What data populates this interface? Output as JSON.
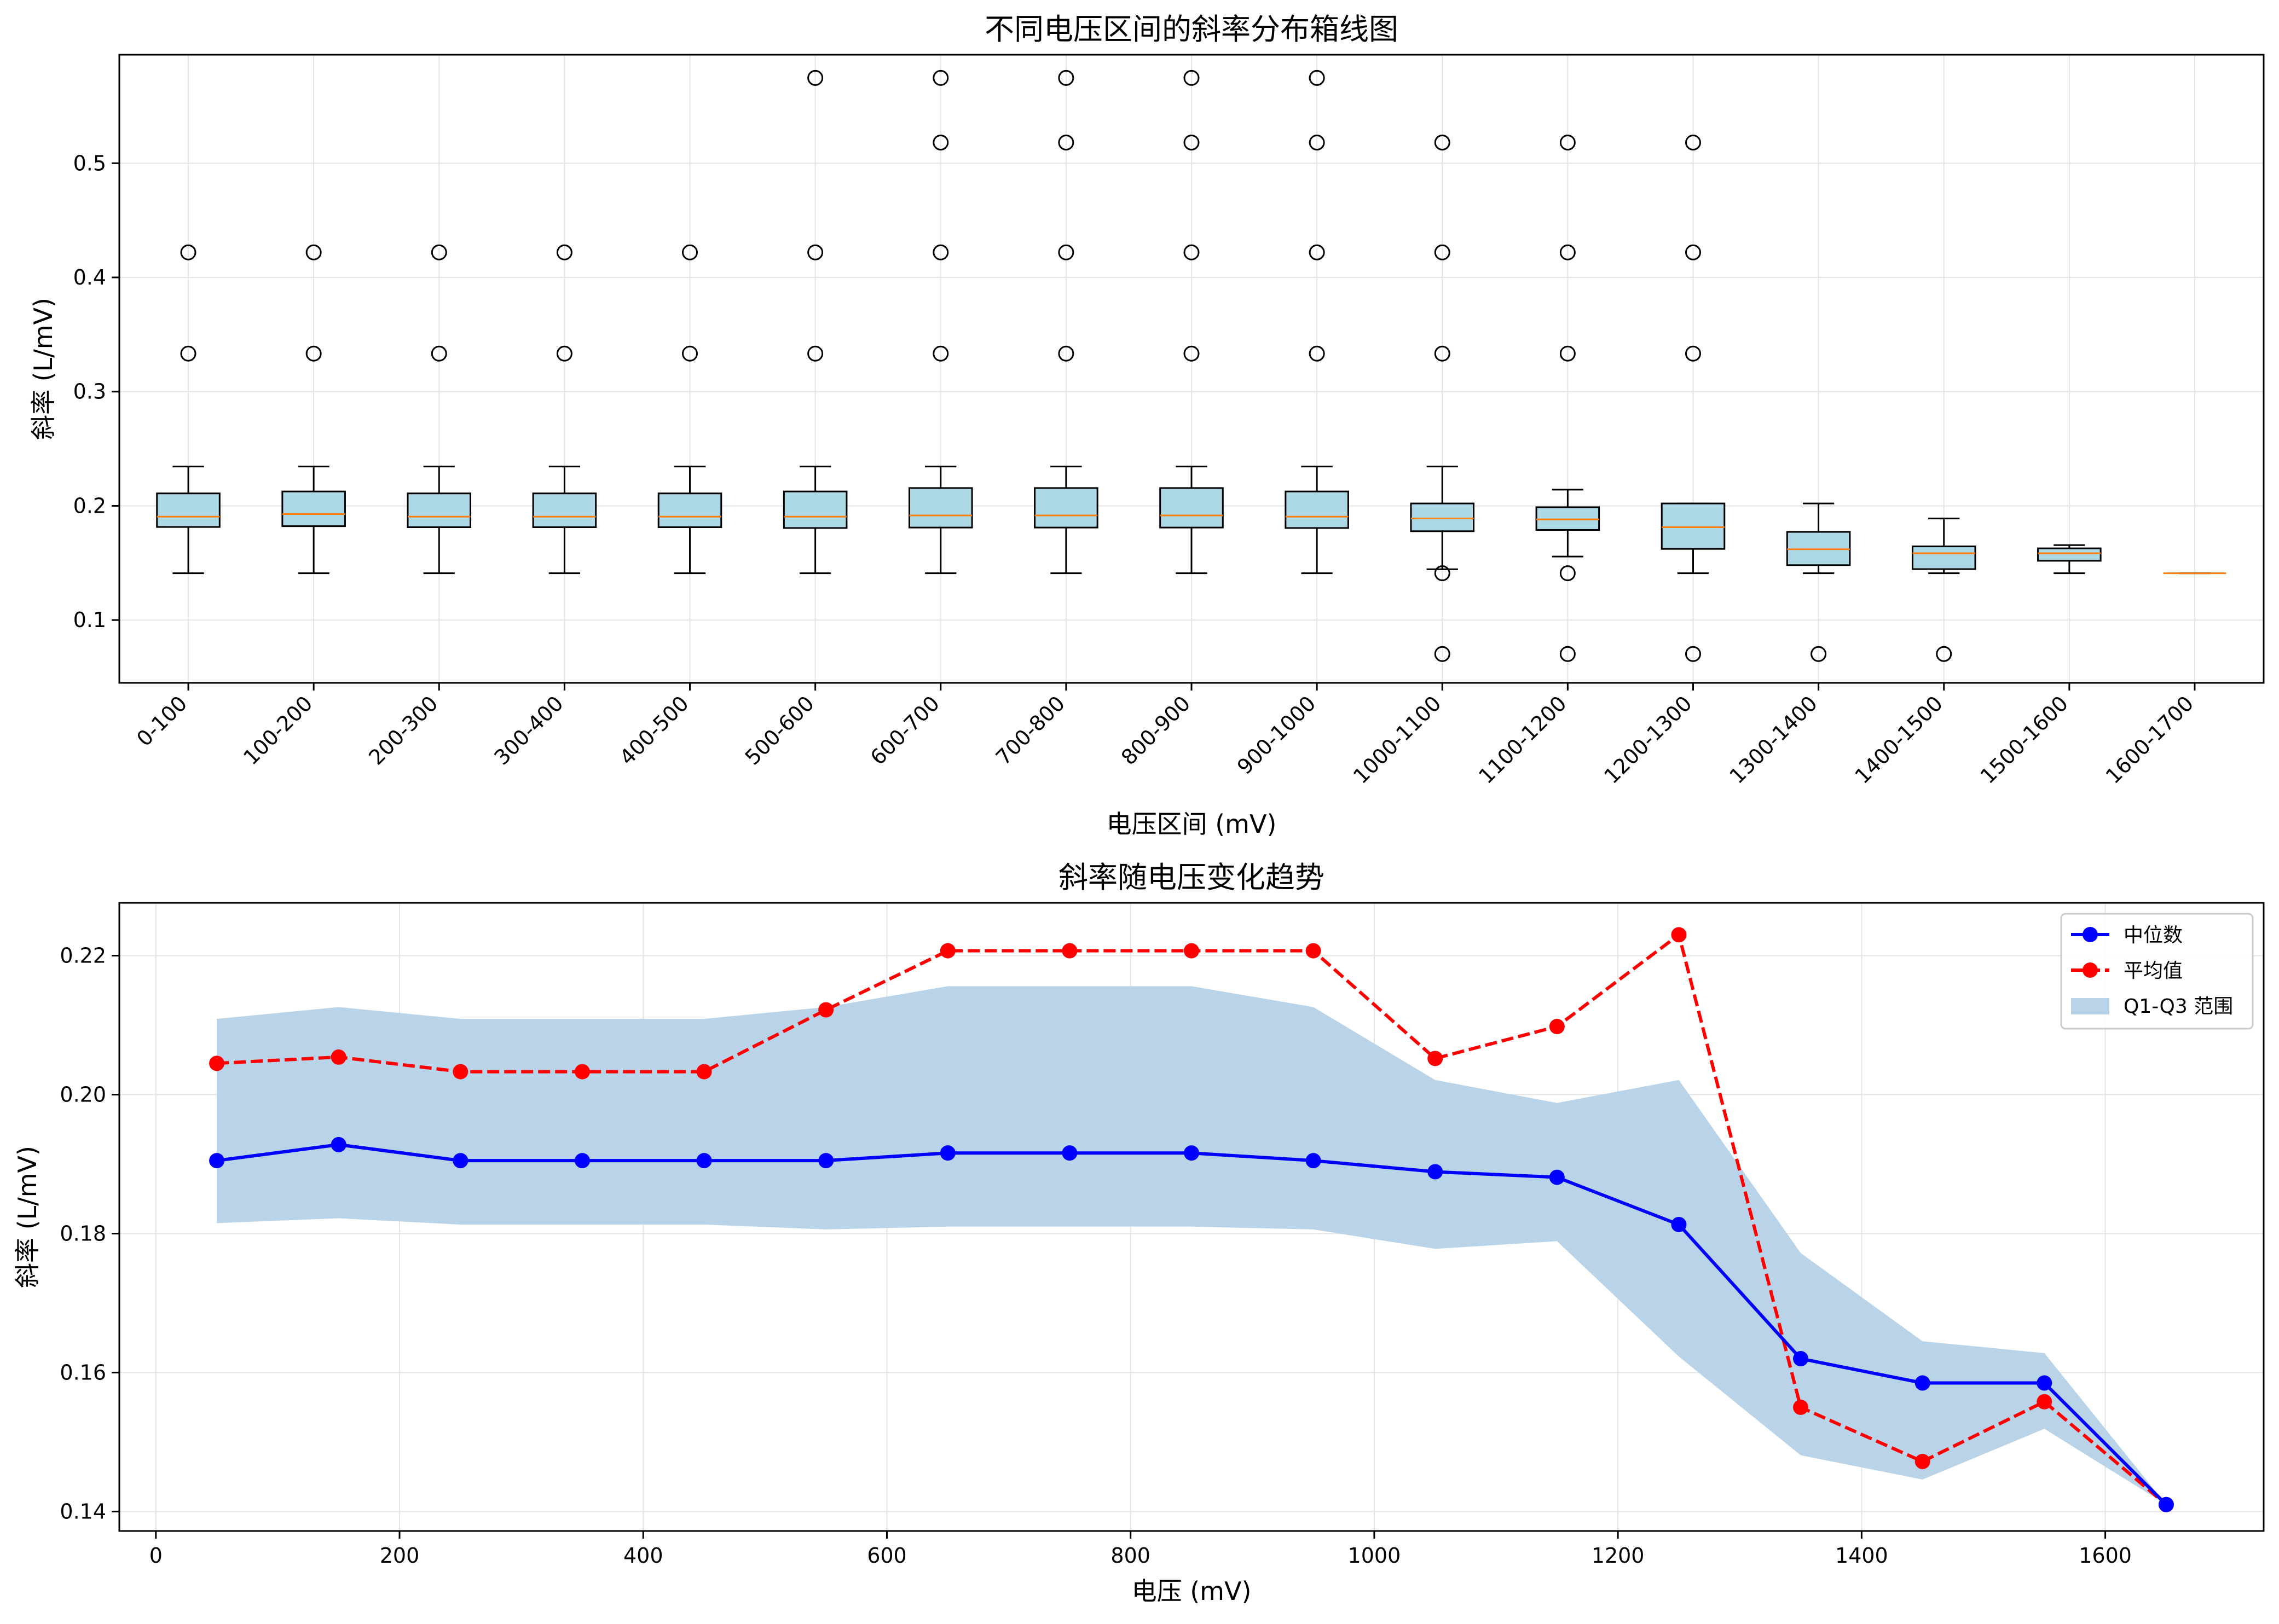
{
  "charts": [
    {
      "type": "box",
      "title": "不同电压区间的斜率分布箱线图",
      "xlabel": "电压区间 (mV)",
      "ylabel": "斜率 (L/mV)",
      "ylim": [
        0.045,
        0.595
      ],
      "yticks": [
        0.1,
        0.2,
        0.3,
        0.4,
        0.5
      ],
      "ytick_labels": [
        "0.1",
        "0.2",
        "0.3",
        "0.4",
        "0.5"
      ],
      "grid": true,
      "categories": [
        "0-100",
        "100-200",
        "200-300",
        "300-400",
        "400-500",
        "500-600",
        "600-700",
        "700-800",
        "800-900",
        "900-1000",
        "1000-1100",
        "1100-1200",
        "1200-1300",
        "1300-1400",
        "1400-1500",
        "1500-1600",
        "1600-1700"
      ],
      "boxes": [
        {
          "whislo": 0.141,
          "q1": 0.1815,
          "med": 0.1905,
          "q3": 0.2109,
          "whishi": 0.2344,
          "fliers": [
            0.3333,
            0.4219
          ]
        },
        {
          "whislo": 0.141,
          "q1": 0.1822,
          "med": 0.1928,
          "q3": 0.2126,
          "whishi": 0.2344,
          "fliers": [
            0.3333,
            0.4219
          ]
        },
        {
          "whislo": 0.141,
          "q1": 0.1813,
          "med": 0.1905,
          "q3": 0.2109,
          "whishi": 0.2344,
          "fliers": [
            0.3333,
            0.4219
          ]
        },
        {
          "whislo": 0.141,
          "q1": 0.1813,
          "med": 0.1905,
          "q3": 0.2109,
          "whishi": 0.2344,
          "fliers": [
            0.3333,
            0.4219
          ]
        },
        {
          "whislo": 0.141,
          "q1": 0.1813,
          "med": 0.1905,
          "q3": 0.2109,
          "whishi": 0.2344,
          "fliers": [
            0.3333,
            0.4219
          ]
        },
        {
          "whislo": 0.141,
          "q1": 0.1806,
          "med": 0.1905,
          "q3": 0.2126,
          "whishi": 0.2344,
          "fliers": [
            0.3333,
            0.4219,
            0.5747
          ]
        },
        {
          "whislo": 0.141,
          "q1": 0.181,
          "med": 0.1916,
          "q3": 0.2156,
          "whishi": 0.2344,
          "fliers": [
            0.3333,
            0.4219,
            0.5181,
            0.5747
          ]
        },
        {
          "whislo": 0.141,
          "q1": 0.181,
          "med": 0.1916,
          "q3": 0.2156,
          "whishi": 0.2344,
          "fliers": [
            0.3333,
            0.4219,
            0.5181,
            0.5747
          ]
        },
        {
          "whislo": 0.141,
          "q1": 0.181,
          "med": 0.1916,
          "q3": 0.2156,
          "whishi": 0.2344,
          "fliers": [
            0.3333,
            0.4219,
            0.5181,
            0.5747
          ]
        },
        {
          "whislo": 0.141,
          "q1": 0.1806,
          "med": 0.1905,
          "q3": 0.2126,
          "whishi": 0.2344,
          "fliers": [
            0.3333,
            0.4219,
            0.5181,
            0.5747
          ]
        },
        {
          "whislo": 0.1445,
          "q1": 0.1778,
          "med": 0.1889,
          "q3": 0.2021,
          "whishi": 0.2344,
          "fliers": [
            0.0703,
            0.141,
            0.3333,
            0.4219,
            0.5181
          ]
        },
        {
          "whislo": 0.1556,
          "q1": 0.1789,
          "med": 0.1881,
          "q3": 0.1988,
          "whishi": 0.2142,
          "fliers": [
            0.0703,
            0.141,
            0.3333,
            0.4219,
            0.5181
          ]
        },
        {
          "whislo": 0.141,
          "q1": 0.1623,
          "med": 0.1813,
          "q3": 0.2021,
          "whishi": 0.2021,
          "fliers": [
            0.0703,
            0.3333,
            0.4219,
            0.5181
          ]
        },
        {
          "whislo": 0.141,
          "q1": 0.1481,
          "med": 0.162,
          "q3": 0.1772,
          "whishi": 0.2021,
          "fliers": [
            0.0703
          ]
        },
        {
          "whislo": 0.141,
          "q1": 0.1446,
          "med": 0.1585,
          "q3": 0.1645,
          "whishi": 0.1889,
          "fliers": [
            0.0703
          ]
        },
        {
          "whislo": 0.141,
          "q1": 0.1519,
          "med": 0.1585,
          "q3": 0.1628,
          "whishi": 0.1656,
          "fliers": []
        },
        {
          "whislo": 0.141,
          "q1": 0.141,
          "med": 0.141,
          "q3": 0.141,
          "whishi": 0.141,
          "fliers": []
        }
      ],
      "colors": {
        "box_fill": "#add8e6",
        "median": "#ff7f0e",
        "edge": "#000000"
      }
    },
    {
      "type": "line",
      "title": "斜率随电压变化趋势",
      "xlabel": "电压 (mV)",
      "ylabel": "斜率 (L/mV)",
      "xlim": [
        -30,
        1730
      ],
      "ylim": [
        0.1372,
        0.2276
      ],
      "xticks": [
        0,
        200,
        400,
        600,
        800,
        1000,
        1200,
        1400,
        1600
      ],
      "xtick_labels": [
        "0",
        "200",
        "400",
        "600",
        "800",
        "1000",
        "1200",
        "1400",
        "1600"
      ],
      "yticks": [
        0.14,
        0.16,
        0.18,
        0.2,
        0.22
      ],
      "ytick_labels": [
        "0.14",
        "0.16",
        "0.18",
        "0.20",
        "0.22"
      ],
      "grid": true,
      "legend_position": "top-right",
      "x": [
        50,
        150,
        250,
        350,
        450,
        550,
        650,
        750,
        850,
        950,
        1050,
        1150,
        1250,
        1350,
        1450,
        1550,
        1650
      ],
      "series": [
        {
          "name": "中位数",
          "color": "#0000ff",
          "dash": "solid",
          "values": [
            0.1905,
            0.1928,
            0.1905,
            0.1905,
            0.1905,
            0.1905,
            0.1916,
            0.1916,
            0.1916,
            0.1905,
            0.1889,
            0.1881,
            0.1813,
            0.162,
            0.1585,
            0.1585,
            0.141
          ]
        },
        {
          "name": "平均值",
          "color": "#ff0000",
          "dash": "dashed",
          "values": [
            0.2045,
            0.2054,
            0.2033,
            0.2033,
            0.2033,
            0.2122,
            0.2207,
            0.2207,
            0.2207,
            0.2207,
            0.2052,
            0.2098,
            0.223,
            0.155,
            0.1472,
            0.1558,
            0.141
          ]
        }
      ],
      "band": {
        "name": "Q1-Q3 范围",
        "color": "#b9d4e8",
        "lower": [
          0.1815,
          0.1822,
          0.1813,
          0.1813,
          0.1813,
          0.1806,
          0.181,
          0.181,
          0.181,
          0.1806,
          0.1778,
          0.1789,
          0.1623,
          0.1481,
          0.1446,
          0.1519,
          0.141
        ],
        "upper": [
          0.2109,
          0.2126,
          0.2109,
          0.2109,
          0.2109,
          0.2126,
          0.2156,
          0.2156,
          0.2156,
          0.2126,
          0.2021,
          0.1988,
          0.2021,
          0.1772,
          0.1645,
          0.1628,
          0.141
        ]
      }
    }
  ]
}
